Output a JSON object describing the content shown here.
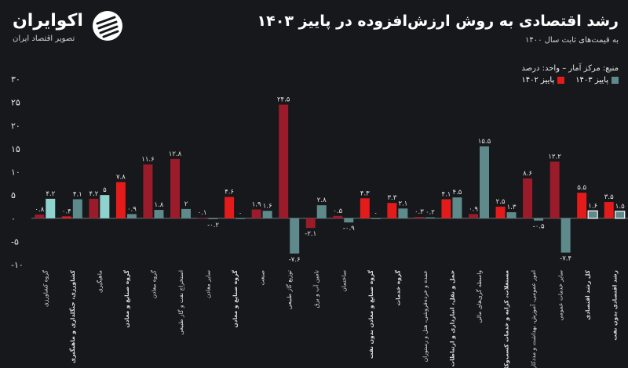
{
  "brand": {
    "name": "اکوایران",
    "tagline": "تصویر اقتصاد ایران"
  },
  "header": {
    "title": "رشد اقتصادی به روش ارزش‌افزوده در پاییز ۱۴۰۳",
    "subtitle": "به قیمت‌های ثابت سال ۱۴۰۰"
  },
  "source": "منبع: مرکز آمار – واحد: درصد",
  "legend": [
    {
      "name": "پاییز ۱۴۰۳",
      "color": "#5e8a8c"
    },
    {
      "name": "پاییز ۱۴۰۲",
      "color": "#e31b1b"
    }
  ],
  "chart_data": {
    "type": "bar",
    "ylim": [
      -10,
      30
    ],
    "yticks": [
      -10,
      -5,
      0,
      5,
      10,
      15,
      20,
      25,
      30
    ],
    "ytick_labels": [
      "-۱۰",
      "-۵",
      "۰",
      "۵",
      "۱۰",
      "۱۵",
      "۲۰",
      "۲۵",
      "۳۰"
    ],
    "categories": [
      "گروه کشاورزی",
      "کشاورزی، جنگلداری و ماهیگیری",
      "ماهیگیری",
      "گروه صنایع و معادن",
      "گروه معادن",
      "استخراج نفت و گاز طبیعی",
      "سایر معادن",
      "گروه صنایع و معادن",
      "صنعت",
      "توزیع گاز طبیعی",
      "تامین آب و برق",
      "ساختمان",
      "گروه صنایع و معادن بدون نفت",
      "گروه خدمات",
      "عمده و خرده‌فروشی، هتل و رستوران",
      "حمل و نقل، انبارداری و ارتباطات",
      "واسطه گری‌های مالی",
      "مستغلات، کرایه و خدمات کسب‌وکار",
      "امور عمومی، آموزش، بهداشت و مددکاری",
      "سایر خدمات عمومی",
      "کل رشد اقتصادی",
      "رشد اقتصادی بدون نفت"
    ],
    "series": [
      {
        "name": "پاییز ۱۴۰۲",
        "values": [
          0.8,
          0.4,
          4.2,
          7.8,
          11.6,
          12.8,
          0.1,
          4.6,
          1.9,
          24.5,
          -2.1,
          0.5,
          4.3,
          3.3,
          0.3,
          4.1,
          0.9,
          2.5,
          8.6,
          12.2,
          5.5,
          3.5
        ],
        "labels": [
          "۰.۸",
          "۰.۴",
          "۴.۲",
          "۷.۸",
          "۱۱.۶",
          "۱۲.۸",
          "۰.۱",
          "۴.۶",
          "۱.۹",
          "۲۴.۵",
          "-۲.۱",
          "۰.۵",
          "۴.۳",
          "۳.۳",
          "۰.۳",
          "۴.۱",
          "۰.۹",
          "۲.۵",
          "۸.۶",
          "۱۲.۲",
          "۵.۵",
          "۳.۵"
        ]
      },
      {
        "name": "پاییز ۱۴۰۳",
        "values": [
          4.2,
          4.1,
          5,
          0.9,
          1.8,
          2,
          -0.2,
          0,
          1.6,
          -7.6,
          2.8,
          -0.9,
          0,
          2.1,
          0.2,
          4.5,
          15.5,
          1.3,
          -0.5,
          -7.4,
          1.6,
          1.5
        ],
        "labels": [
          "۴.۲",
          "۴.۱",
          "۵",
          "۰.۹",
          "۱.۸",
          "۲",
          "-۰.۲",
          "۰",
          "۱.۶",
          "-۷.۶",
          "۲.۸",
          "-۰.۹",
          "۰",
          "۲.۱",
          "۰.۲",
          "۴.۵",
          "۱۵.۵",
          "۱.۳",
          "-۰.۵",
          "-۷.۴",
          "۱.۶",
          "۱.۵"
        ]
      }
    ],
    "highlight_categories": [
      1,
      3,
      7,
      12,
      13,
      15,
      17,
      20,
      21
    ],
    "colors": {
      "2023_dark": "#9a1b2a",
      "2023_bright": "#e31b1b",
      "2024_teal": "#5e8a8c",
      "2024_light": "#8fd3cf",
      "2024_grey": "#b8c2c4"
    }
  }
}
